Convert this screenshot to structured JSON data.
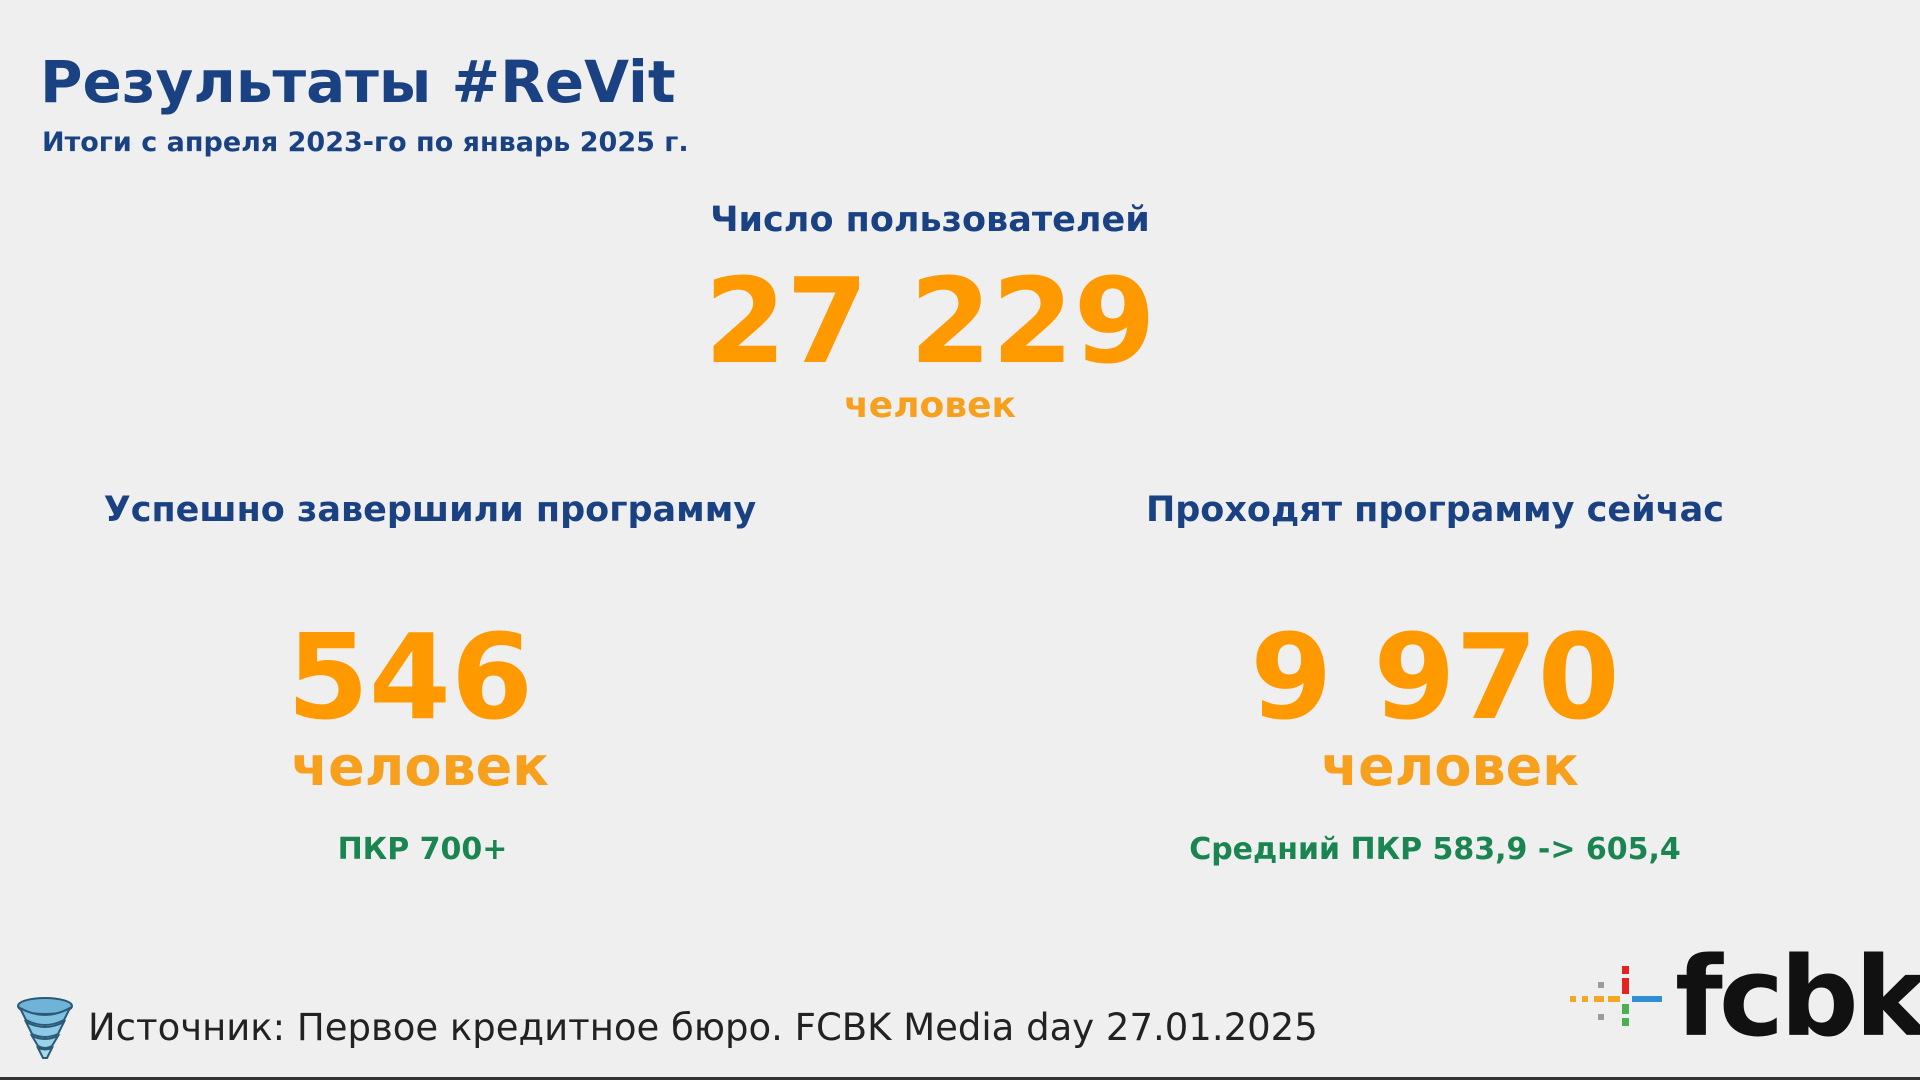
{
  "header": {
    "title": "Результаты #ReVit",
    "subtitle": "Итоги с апреля 2023-го по январь 2025 г."
  },
  "users": {
    "heading": "Число пользователей",
    "value": "27 229",
    "unit": "человек"
  },
  "completed": {
    "heading": "Успешно завершили программу",
    "value": "546",
    "unit": "человек",
    "note": "ПКР 700+"
  },
  "in_progress": {
    "heading": "Проходят программу сейчас",
    "value": "9 970",
    "unit": "человек",
    "note": "Средний ПКР 583,9 -> 605,4"
  },
  "footer": {
    "source": "Источник: Первое кредитное бюро. FCBK Media day 27.01.2025",
    "logo": "fcbk"
  },
  "colors": {
    "heading": "#1a4182",
    "accent_number": "#ff9900",
    "note": "#1a8550",
    "background": "#efefef"
  }
}
